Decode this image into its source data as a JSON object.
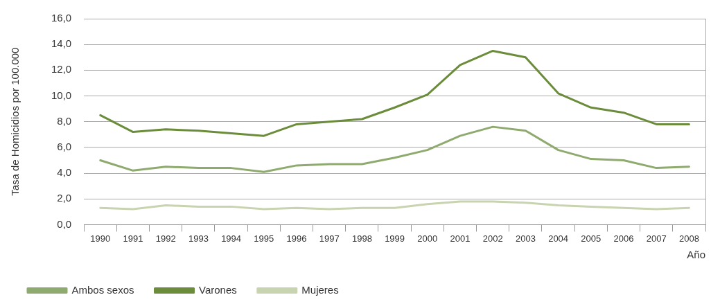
{
  "chart_data": {
    "type": "line",
    "xlabel": "Año",
    "ylabel": "Tasa de Homicidios por 100.000",
    "categories": [
      "1990",
      "1991",
      "1992",
      "1993",
      "1994",
      "1995",
      "1996",
      "1997",
      "1998",
      "1999",
      "2000",
      "2001",
      "2002",
      "2003",
      "2004",
      "2005",
      "2006",
      "2007",
      "2008"
    ],
    "series": [
      {
        "name": "Ambos sexos",
        "color": "#8faa6e",
        "values": [
          5.0,
          4.2,
          4.5,
          4.4,
          4.4,
          4.1,
          4.6,
          4.7,
          4.7,
          5.2,
          5.8,
          6.9,
          7.6,
          7.3,
          5.8,
          5.1,
          5.0,
          4.4,
          4.5
        ]
      },
      {
        "name": "Varones",
        "color": "#6b8c3a",
        "values": [
          8.5,
          7.2,
          7.4,
          7.3,
          7.1,
          6.9,
          7.8,
          8.0,
          8.2,
          9.1,
          10.1,
          12.4,
          13.5,
          13.0,
          10.2,
          9.1,
          8.7,
          7.8,
          7.8
        ]
      },
      {
        "name": "Mujeres",
        "color": "#c8d3b0",
        "values": [
          1.3,
          1.2,
          1.5,
          1.4,
          1.4,
          1.2,
          1.3,
          1.2,
          1.3,
          1.3,
          1.6,
          1.8,
          1.8,
          1.7,
          1.5,
          1.4,
          1.3,
          1.2,
          1.3
        ]
      }
    ],
    "ylim": [
      0,
      16
    ],
    "yticks": [
      {
        "value": 0,
        "label": "0,0"
      },
      {
        "value": 2,
        "label": "2,0"
      },
      {
        "value": 4,
        "label": "4,0"
      },
      {
        "value": 6,
        "label": "6,0"
      },
      {
        "value": 8,
        "label": "8,0"
      },
      {
        "value": 10,
        "label": "10,0"
      },
      {
        "value": 12,
        "label": "12,0"
      },
      {
        "value": 14,
        "label": "14,0"
      },
      {
        "value": 16,
        "label": "16,0"
      }
    ],
    "grid": "y",
    "legend": "bottom left",
    "marker": "none",
    "line_style": "solid"
  }
}
